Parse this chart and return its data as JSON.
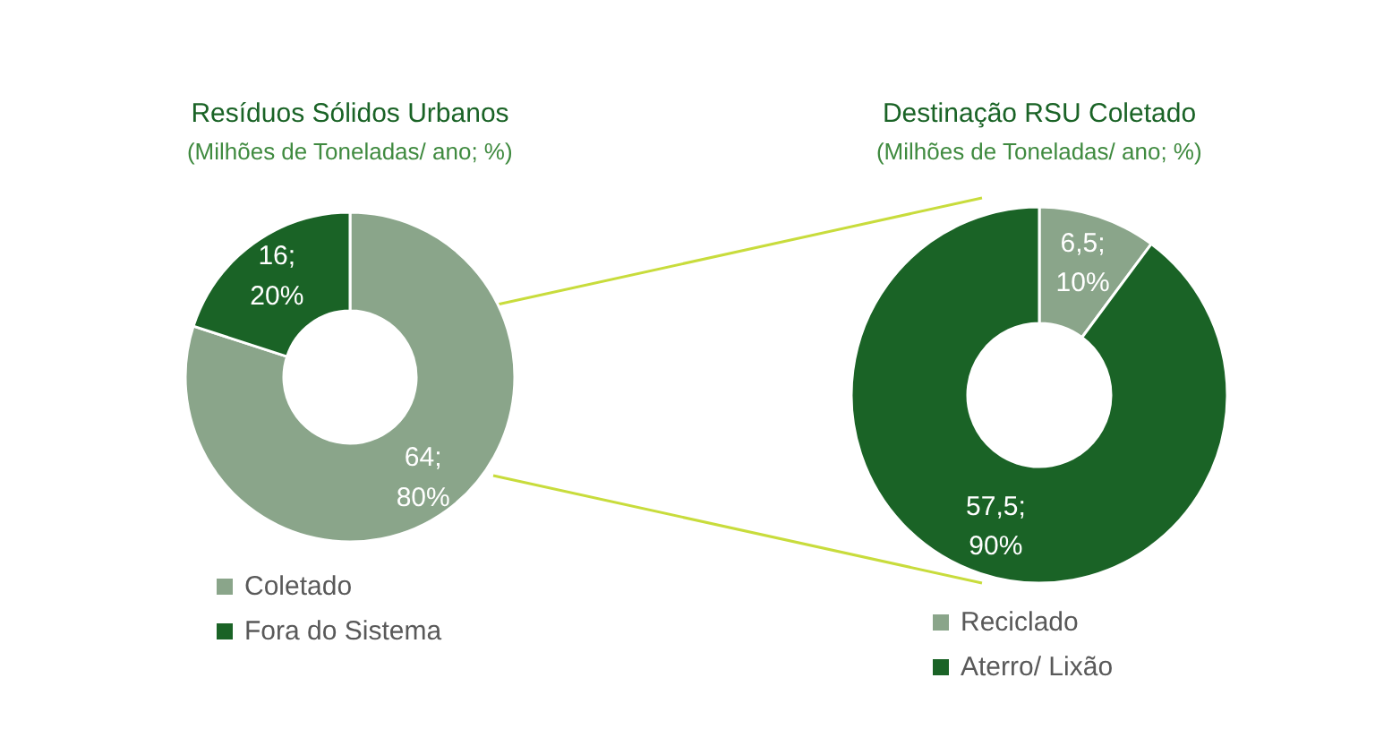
{
  "chart_data": [
    {
      "type": "donut",
      "title": "Resíduos Sólidos Urbanos",
      "subtitle": "(Milhões de Toneladas/ ano; %)",
      "categories": [
        "Coletado",
        "Fora do Sistema"
      ],
      "values": [
        64,
        16
      ],
      "colors": [
        "#8aa58a",
        "#1a6326"
      ],
      "value_labels": [
        "64;\n80%",
        "16;\n20%"
      ],
      "legend": "bottom"
    },
    {
      "type": "donut",
      "title": "Destinação RSU Coletado",
      "subtitle": "(Milhões de Toneladas/ ano; %)",
      "categories": [
        "Reciclado",
        "Aterro/ Lixão"
      ],
      "values": [
        6.5,
        57.5
      ],
      "colors": [
        "#8aa58a",
        "#1a6326"
      ],
      "value_labels": [
        "6,5;\n10%",
        "57,5;\n90%"
      ],
      "legend": "bottom"
    }
  ]
}
